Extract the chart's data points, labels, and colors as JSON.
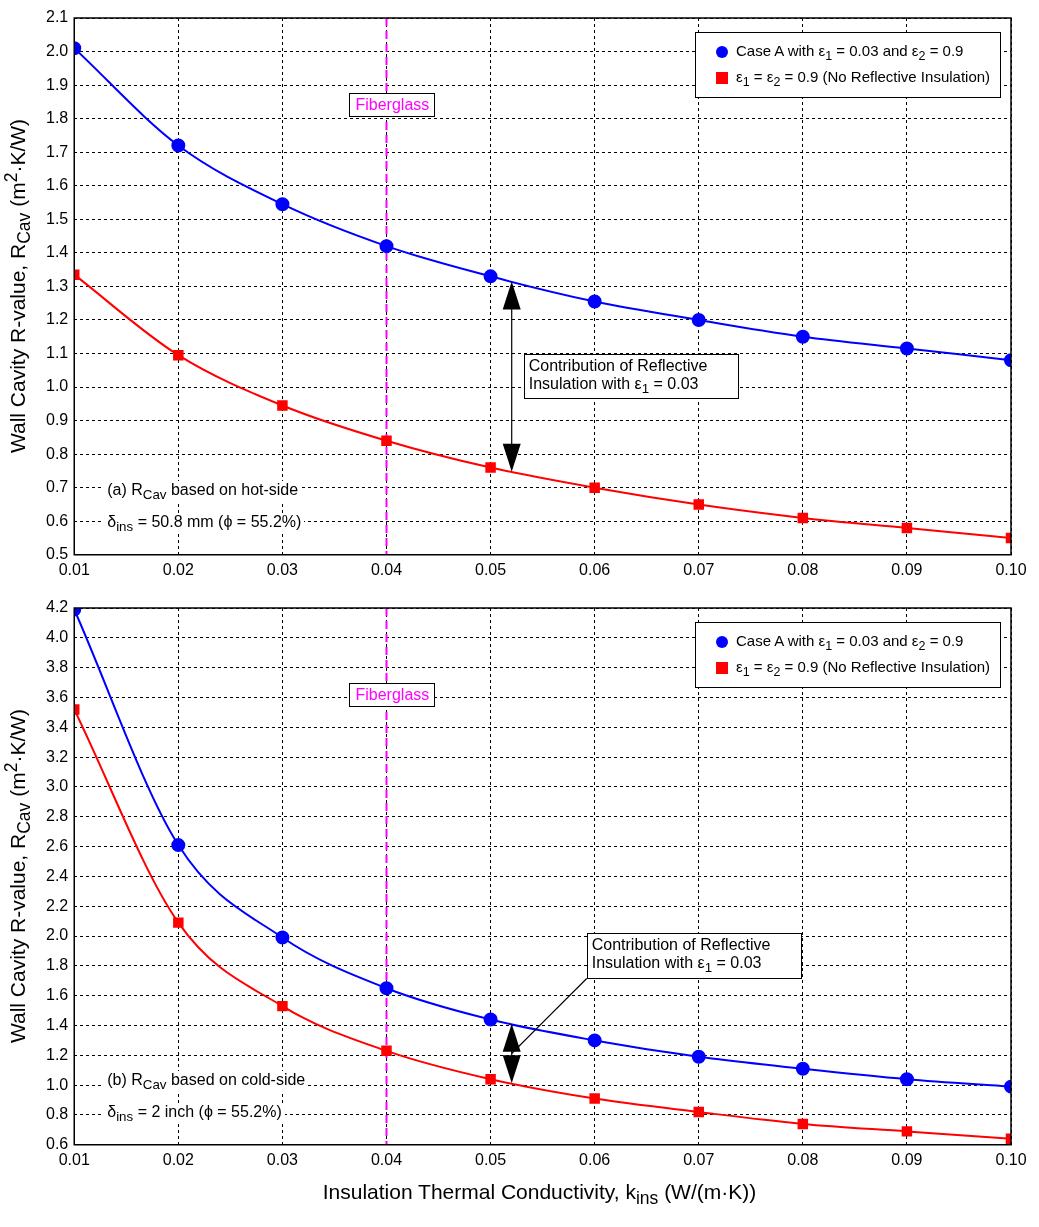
{
  "chart_data": [
    {
      "type": "line",
      "x": [
        0.01,
        0.02,
        0.03,
        0.04,
        0.05,
        0.06,
        0.07,
        0.08,
        0.09,
        0.1
      ],
      "series": [
        {
          "name": "Case A with ε$_{1}$ = 0.03 and ε$_{2}$ = 0.9",
          "color": "#0000ff",
          "marker": "circle",
          "values": [
            2.01,
            1.72,
            1.545,
            1.42,
            1.33,
            1.255,
            1.2,
            1.15,
            1.115,
            1.08
          ]
        },
        {
          "name": "ε$_{1}$ = ε$_{2}$ = 0.9 (No Reflective Insulation)",
          "color": "#ff0000",
          "marker": "square",
          "values": [
            1.335,
            1.095,
            0.945,
            0.84,
            0.76,
            0.7,
            0.65,
            0.61,
            0.58,
            0.55
          ]
        }
      ],
      "ylabel": "Wall Cavity R-value, R$_{Cav}$ (m$^{2}$·K/W)",
      "xlim": [
        0.01,
        0.1
      ],
      "xticks": [
        0.01,
        0.02,
        0.03,
        0.04,
        0.05,
        0.06,
        0.07,
        0.08,
        0.09,
        {
          "value": 0.1,
          "label": "0.10"
        }
      ],
      "ylim": [
        0.5,
        2.1
      ],
      "yticks": [
        0.5,
        0.6,
        0.7,
        0.8,
        0.9,
        {
          "value": 1,
          "label": "1.0"
        },
        1.1,
        1.2,
        1.3,
        1.4,
        1.5,
        1.6,
        1.7,
        1.8,
        1.9,
        {
          "value": 2,
          "label": "2.0"
        },
        2.1
      ],
      "grid": true,
      "legend": "top right",
      "ref_lines": [
        {
          "axis": "x",
          "value": 0.04,
          "label": "Fiberglass",
          "color": "#ff00ff",
          "line_style": "dashed"
        }
      ],
      "annotations": [
        "Contribution of Reflective Insulation with ε$_{1}$ = 0.03",
        "(a) R$_{Cav}$ based on hot-side",
        "δ$_{ins}$ = 50.8 mm (ϕ = 55.2%)"
      ]
    },
    {
      "type": "line",
      "x": [
        0.01,
        0.02,
        0.03,
        0.04,
        0.05,
        0.06,
        0.07,
        0.08,
        0.09,
        0.1
      ],
      "series": [
        {
          "name": "Case A with ε$_{1}$ = 0.03 and ε$_{2}$ = 0.9",
          "color": "#0000ff",
          "marker": "circle",
          "values": [
            4.19,
            2.61,
            1.99,
            1.65,
            1.44,
            1.3,
            1.19,
            1.11,
            1.04,
            0.99
          ]
        },
        {
          "name": "ε$_{1}$ = ε$_{2}$ = 0.9 (No Reflective Insulation)",
          "color": "#ff0000",
          "marker": "square",
          "values": [
            3.52,
            2.09,
            1.53,
            1.23,
            1.04,
            0.91,
            0.82,
            0.74,
            0.69,
            0.64
          ]
        }
      ],
      "xlabel": "Insulation Thermal Conductivity, k$_{ins}$ (W/(m·K))",
      "ylabel": "Wall Cavity R-value, R$_{Cav}$ (m$^{2}$·K/W)",
      "xlim": [
        0.01,
        0.1
      ],
      "xticks": [
        0.01,
        0.02,
        0.03,
        0.04,
        0.05,
        0.06,
        0.07,
        0.08,
        0.09,
        {
          "value": 0.1,
          "label": "0.10"
        }
      ],
      "ylim": [
        0.6,
        4.2
      ],
      "yticks": [
        0.6,
        0.8,
        {
          "value": 1,
          "label": "1.0"
        },
        1.2,
        1.4,
        1.6,
        1.8,
        {
          "value": 2,
          "label": "2.0"
        },
        2.2,
        2.4,
        2.6,
        2.8,
        {
          "value": 3,
          "label": "3.0"
        },
        3.2,
        3.4,
        3.6,
        3.8,
        {
          "value": 4,
          "label": "4.0"
        },
        4.2
      ],
      "grid": true,
      "legend": "top right",
      "ref_lines": [
        {
          "axis": "x",
          "value": 0.04,
          "label": "Fiberglass",
          "color": "#ff00ff",
          "line_style": "dashed"
        }
      ],
      "annotations": [
        "Contribution of Reflective Insulation with ε$_{1}$ = 0.03",
        "(b) R$_{Cav}$ based on cold-side",
        "δ$_{ins}$ = 2 inch (ϕ = 55.2%)"
      ]
    }
  ]
}
